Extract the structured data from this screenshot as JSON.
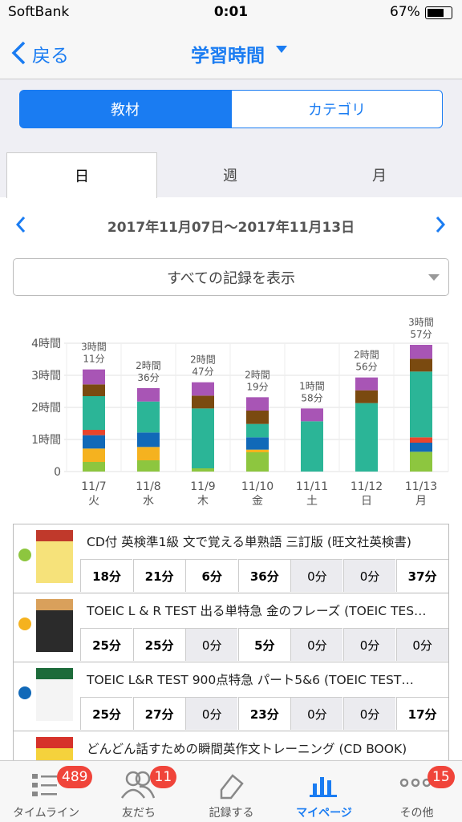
{
  "status_bar": {
    "carrier": "SoftBank",
    "time": "0:01",
    "battery": "67%"
  },
  "nav": {
    "back": "戻る",
    "title": "学習時間"
  },
  "segments": [
    "教材",
    "カテゴリ"
  ],
  "tabs": [
    "日",
    "週",
    "月"
  ],
  "date_range": "2017年11月07日〜2017年11月13日",
  "filter": "すべての記録を表示",
  "chart_data": {
    "type": "bar",
    "stacked": true,
    "categories": [
      "11/7",
      "11/8",
      "11/9",
      "11/10",
      "11/11",
      "11/12",
      "11/13"
    ],
    "weekdays": [
      "火",
      "水",
      "木",
      "金",
      "土",
      "日",
      "月"
    ],
    "series": [
      {
        "color": "#8dc63f",
        "values": [
          18,
          21,
          6,
          36,
          0,
          0,
          37
        ]
      },
      {
        "color": "#f5b21f",
        "values": [
          25,
          25,
          0,
          5,
          0,
          0,
          0
        ]
      },
      {
        "color": "#1169b8",
        "values": [
          25,
          27,
          0,
          23,
          0,
          0,
          17
        ]
      },
      {
        "color": "#e8452c",
        "values": [
          10,
          0,
          0,
          0,
          0,
          0,
          10
        ]
      },
      {
        "color": "#2bb597",
        "values": [
          63,
          58,
          112,
          25,
          94,
          128,
          123
        ]
      },
      {
        "color": "#7a4a10",
        "values": [
          22,
          0,
          24,
          25,
          0,
          24,
          24
        ]
      },
      {
        "color": "#a855b5",
        "values": [
          28,
          25,
          25,
          25,
          24,
          24,
          26
        ]
      }
    ],
    "total_labels": [
      [
        "3時間",
        "11分"
      ],
      [
        "2時間",
        "36分"
      ],
      [
        "2時間",
        "47分"
      ],
      [
        "2時間",
        "19分"
      ],
      [
        "1時間",
        "58分"
      ],
      [
        "2時間",
        "56分"
      ],
      [
        "3時間",
        "57分"
      ]
    ],
    "ylim": [
      0,
      240
    ],
    "yticks": [
      0,
      {
        "value": 60,
        "label": "1時間"
      },
      {
        "value": 120,
        "label": "2時間"
      },
      {
        "value": 180,
        "label": "3時間"
      },
      {
        "value": 240,
        "label": "4時間"
      }
    ],
    "grid": true
  },
  "books": [
    {
      "title": "CD付 英検準1級 文で覚える単熟語 三訂版 (旺文社英検書)",
      "color": "#8dc63f",
      "minutes": [
        "18分",
        "21分",
        "6分",
        "36分",
        "0分",
        "0分",
        "37分"
      ]
    },
    {
      "title": "TOEIC L & R TEST 出る単特急 金のフレーズ (TOEIC TES…",
      "color": "#f5b21f",
      "minutes": [
        "25分",
        "25分",
        "0分",
        "5分",
        "0分",
        "0分",
        "0分"
      ]
    },
    {
      "title": "TOEIC L&R TEST 900点特急 パート5&6 (TOEIC TEST…",
      "color": "#1169b8",
      "minutes": [
        "25分",
        "27分",
        "0分",
        "23分",
        "0分",
        "0分",
        "17分"
      ]
    },
    {
      "title": "どんどん話すための瞬間英作文トレーニング (CD BOOK)"
    }
  ],
  "tab_bar": [
    {
      "label": "タイムライン",
      "badge": 489
    },
    {
      "label": "友だち",
      "badge": 11
    },
    {
      "label": "記録する"
    },
    {
      "label": "マイページ"
    },
    {
      "label": "その他",
      "badge": 15
    }
  ]
}
